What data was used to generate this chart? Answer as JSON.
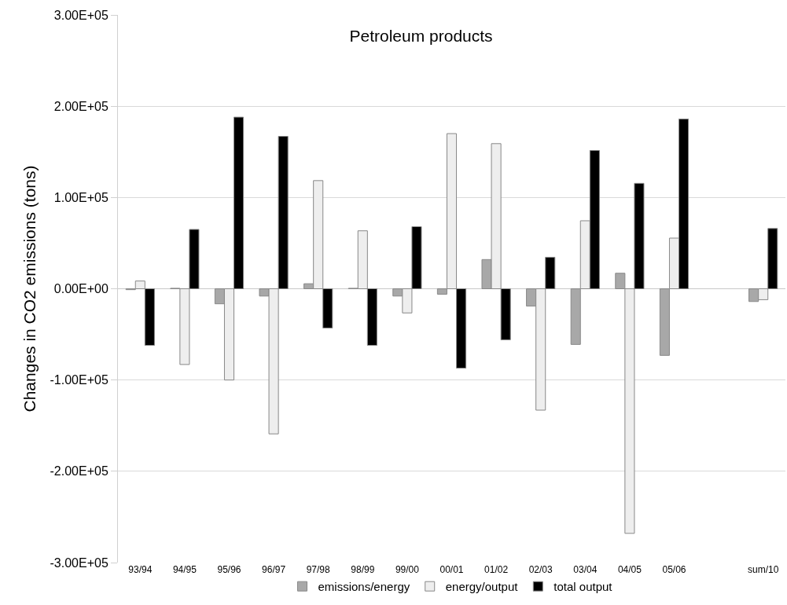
{
  "chart_data": {
    "type": "bar",
    "title": "Petroleum products",
    "ylabel": "Changes in CO2 emissions (tons)",
    "categories": [
      "93/94",
      "94/95",
      "95/96",
      "96/97",
      "97/98",
      "98/99",
      "99/00",
      "00/01",
      "01/02",
      "02/03",
      "03/04",
      "04/05",
      "05/06",
      null,
      "sum/10"
    ],
    "series": [
      {
        "name": "emissions/energy",
        "color": "#a8a8a8",
        "values": [
          -1000,
          500,
          -16500,
          -8000,
          5500,
          500,
          -8000,
          -6000,
          32000,
          -19000,
          -61000,
          17000,
          -73000,
          null,
          -14000
        ]
      },
      {
        "name": "energy/output",
        "color": "#eeeeee",
        "values": [
          8500,
          -83000,
          -100000,
          -159000,
          118500,
          63500,
          -26500,
          170000,
          159000,
          -133000,
          74500,
          -268000,
          55500,
          null,
          -12000
        ]
      },
      {
        "name": "total output",
        "color": "#000000",
        "values": [
          -62000,
          65000,
          188000,
          167000,
          -43000,
          -62000,
          68000,
          -87000,
          -56000,
          34500,
          151500,
          115500,
          186000,
          null,
          66000
        ]
      }
    ],
    "ylim": [
      -300000,
      300000
    ],
    "yticks": [
      {
        "value": -300000,
        "label": "-3.00E+05"
      },
      {
        "value": -200000,
        "label": "-2.00E+05"
      },
      {
        "value": -100000,
        "label": "-1.00E+05"
      },
      {
        "value": 0,
        "label": "0.00E+00"
      },
      {
        "value": 100000,
        "label": "1.00E+05"
      },
      {
        "value": 200000,
        "label": "2.00E+05"
      },
      {
        "value": 300000,
        "label": "3.00E+05"
      }
    ],
    "grid": "y",
    "legend": "bottom"
  }
}
